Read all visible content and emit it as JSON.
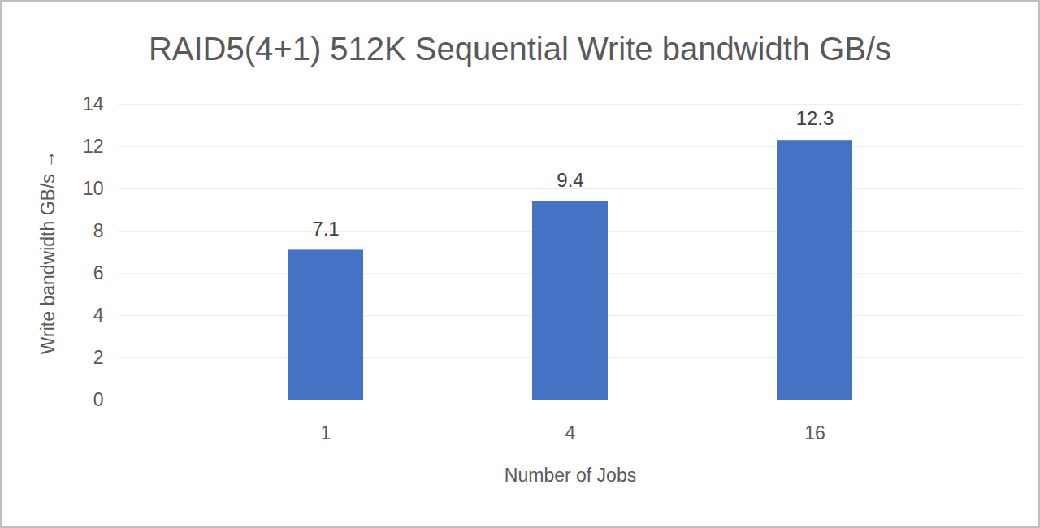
{
  "chart_data": {
    "type": "bar",
    "title": "RAID5(4+1) 512K Sequential Write bandwidth GB/s",
    "xlabel": "Number of Jobs",
    "ylabel": "Write bandwidth GB/s",
    "categories": [
      "1",
      "4",
      "16"
    ],
    "values": [
      7.1,
      9.4,
      12.3
    ],
    "color": "#4472c4",
    "ylim": [
      0,
      14
    ],
    "yticks": [
      0,
      2,
      4,
      6,
      8,
      10,
      12,
      14
    ],
    "grid": true,
    "data_labels": true
  }
}
